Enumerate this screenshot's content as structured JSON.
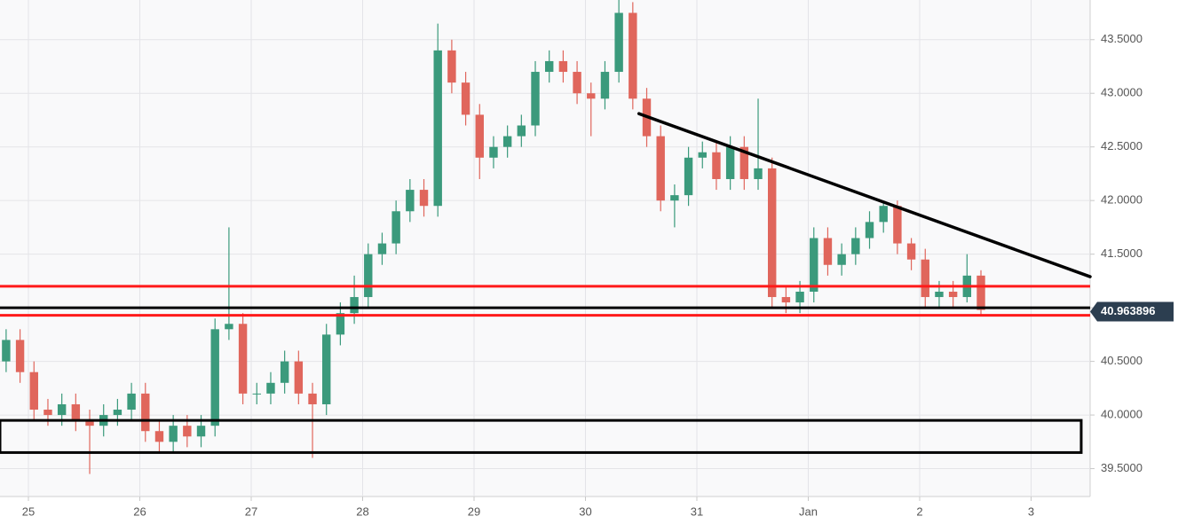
{
  "chart_data": {
    "type": "candlestick",
    "x": [
      -0.2,
      -0.075,
      0.05,
      0.175,
      0.3,
      0.425,
      0.55,
      0.675,
      0.8,
      0.925,
      1.05,
      1.175,
      1.3,
      1.425,
      1.55,
      1.675,
      1.8,
      1.925,
      2.05,
      2.175,
      2.3,
      2.425,
      2.55,
      2.675,
      2.8,
      2.925,
      3.05,
      3.175,
      3.3,
      3.425,
      3.55,
      3.675,
      3.8,
      3.925,
      4.05,
      4.175,
      4.3,
      4.425,
      4.55,
      4.675,
      4.8,
      4.925,
      5.05,
      5.175,
      5.3,
      5.425,
      5.55,
      5.675,
      5.8,
      5.925,
      6.05,
      6.175,
      6.3,
      6.425,
      6.55,
      6.675,
      6.8,
      6.925,
      7.05,
      7.175,
      7.3,
      7.425,
      7.55,
      7.675,
      7.8,
      7.925,
      8.05,
      8.175,
      8.3,
      8.425,
      8.55
    ],
    "open": [
      40.5,
      40.7,
      40.4,
      40.05,
      40.0,
      40.1,
      39.95,
      39.9,
      40.0,
      40.05,
      40.2,
      39.85,
      39.75,
      39.9,
      39.8,
      39.9,
      40.8,
      40.85,
      40.2,
      40.2,
      40.3,
      40.5,
      40.2,
      40.1,
      40.75,
      40.95,
      41.1,
      41.5,
      41.6,
      41.9,
      42.1,
      41.95,
      43.4,
      43.1,
      42.8,
      42.4,
      42.5,
      42.6,
      42.7,
      43.2,
      43.3,
      43.2,
      43.0,
      42.95,
      43.2,
      43.75,
      42.95,
      42.6,
      42.0,
      42.05,
      42.4,
      42.45,
      42.2,
      42.5,
      42.2,
      42.3,
      41.1,
      41.05,
      41.15,
      41.65,
      41.4,
      41.5,
      41.65,
      41.8,
      41.95,
      41.6,
      41.45,
      41.1,
      41.15,
      41.1,
      41.3
    ],
    "high": [
      40.8,
      40.8,
      40.5,
      40.15,
      40.2,
      40.2,
      40.05,
      40.1,
      40.15,
      40.3,
      40.3,
      39.95,
      40.0,
      40.0,
      40.0,
      40.9,
      41.75,
      40.95,
      40.3,
      40.4,
      40.6,
      40.6,
      40.3,
      40.85,
      41.05,
      41.3,
      41.6,
      41.7,
      42.0,
      42.2,
      42.2,
      43.65,
      43.5,
      43.2,
      42.9,
      42.6,
      42.7,
      42.8,
      43.3,
      43.4,
      43.4,
      43.3,
      43.1,
      43.3,
      43.87,
      43.85,
      43.05,
      42.7,
      42.15,
      42.5,
      42.55,
      42.55,
      42.6,
      42.6,
      42.95,
      42.4,
      41.2,
      41.25,
      41.75,
      41.75,
      41.6,
      41.75,
      41.9,
      42.0,
      42.0,
      41.65,
      41.55,
      41.25,
      41.25,
      41.5,
      41.35
    ],
    "low": [
      40.4,
      40.3,
      39.95,
      39.9,
      39.9,
      39.85,
      39.45,
      39.8,
      39.9,
      39.95,
      39.75,
      39.65,
      39.65,
      39.7,
      39.7,
      39.8,
      40.7,
      40.1,
      40.1,
      40.1,
      40.2,
      40.1,
      39.6,
      40.0,
      40.65,
      40.85,
      41.0,
      41.4,
      41.5,
      41.8,
      41.85,
      41.85,
      43.0,
      42.7,
      42.2,
      42.3,
      42.4,
      42.5,
      42.6,
      43.1,
      43.1,
      42.9,
      42.6,
      42.85,
      43.1,
      42.85,
      42.5,
      41.9,
      41.75,
      41.95,
      42.3,
      42.1,
      42.1,
      42.1,
      42.1,
      41.0,
      40.95,
      40.95,
      41.05,
      41.3,
      41.3,
      41.4,
      41.55,
      41.7,
      41.5,
      41.35,
      41.0,
      41.0,
      41.0,
      41.05,
      40.93
    ],
    "close": [
      40.7,
      40.4,
      40.05,
      40.0,
      40.1,
      39.95,
      39.9,
      40.0,
      40.05,
      40.2,
      39.85,
      39.75,
      39.9,
      39.8,
      39.9,
      40.8,
      40.85,
      40.2,
      40.2,
      40.3,
      40.5,
      40.2,
      40.1,
      40.75,
      40.95,
      41.1,
      41.5,
      41.6,
      41.9,
      42.1,
      41.95,
      43.4,
      43.1,
      42.8,
      42.4,
      42.5,
      42.6,
      42.7,
      43.2,
      43.3,
      43.2,
      43.0,
      42.95,
      43.2,
      43.75,
      42.95,
      42.6,
      42.0,
      42.05,
      42.4,
      42.45,
      42.2,
      42.5,
      42.2,
      42.3,
      41.1,
      41.05,
      41.15,
      41.65,
      41.4,
      41.5,
      41.65,
      41.8,
      41.95,
      41.6,
      41.45,
      41.1,
      41.15,
      41.1,
      41.3,
      40.98
    ],
    "up_color": "#3b9a7c",
    "down_color": "#e0665c",
    "xlim": [
      -0.255,
      9.53
    ],
    "ylim": [
      39.24,
      43.87
    ],
    "xticks": [
      {
        "value": 0,
        "label": "25"
      },
      {
        "value": 1,
        "label": "26"
      },
      {
        "value": 2,
        "label": "27"
      },
      {
        "value": 3,
        "label": "28"
      },
      {
        "value": 4,
        "label": "29"
      },
      {
        "value": 5,
        "label": "30"
      },
      {
        "value": 6,
        "label": "31"
      },
      {
        "value": 7,
        "label": "Jan"
      },
      {
        "value": 8,
        "label": "2"
      },
      {
        "value": 9,
        "label": "3"
      }
    ],
    "yticks": [
      {
        "value": 39.5,
        "label": "39.5000"
      },
      {
        "value": 40,
        "label": "40.0000"
      },
      {
        "value": 40.5,
        "label": "40.5000"
      },
      {
        "value": 41,
        "label": "41.0000"
      },
      {
        "value": 41.5,
        "label": "41.5000"
      },
      {
        "value": 42,
        "label": "42.0000"
      },
      {
        "value": 42.5,
        "label": "42.5000"
      },
      {
        "value": 43,
        "label": "43.0000"
      },
      {
        "value": 43.5,
        "label": "43.5000"
      }
    ],
    "grid": true,
    "last_price": 40.963896,
    "levels": [
      {
        "value": 41.2,
        "color": "#ff1a1a"
      },
      {
        "value": 40.93,
        "color": "#ff1a1a"
      },
      {
        "value": 41.0,
        "color": "#000000"
      }
    ],
    "trendline": {
      "x": [
        5.48,
        9.53
      ],
      "y": [
        42.81,
        41.29
      ],
      "color": "#000000"
    },
    "zone": {
      "x": [
        -0.255,
        9.45
      ],
      "y": [
        39.65,
        39.95
      ],
      "color": "#000000"
    }
  }
}
